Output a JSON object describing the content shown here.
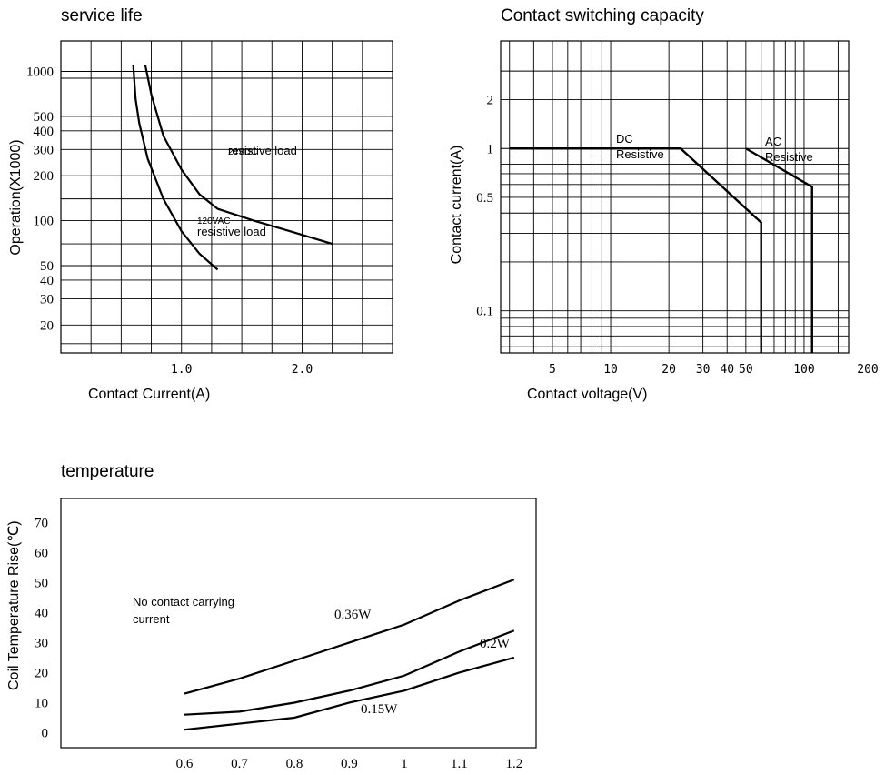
{
  "chart_data": [
    {
      "type": "line",
      "title": "service life",
      "xlabel": "Contact Current(A)",
      "ylabel": "Operation(X1000)",
      "x_ticks": [
        "1.0",
        "2.0"
      ],
      "y_ticks": [
        "1000",
        "500",
        "400",
        "300",
        "200",
        "100",
        "50",
        "40",
        "30",
        "20"
      ],
      "y_scale": "log",
      "series": [
        {
          "label": "24VDC\nresistive load",
          "x": [
            0.7,
            0.75,
            0.85,
            1.0,
            1.15,
            1.3,
            1.6,
            1.9,
            2.25
          ],
          "y": [
            1100,
            700,
            370,
            220,
            150,
            120,
            100,
            85,
            70
          ]
        },
        {
          "label": "120VAC\nresistive load",
          "x": [
            0.6,
            0.62,
            0.65,
            0.72,
            0.85,
            1.0,
            1.15,
            1.3
          ],
          "y": [
            1100,
            650,
            450,
            260,
            140,
            85,
            60,
            47
          ]
        }
      ]
    },
    {
      "type": "line",
      "title": "Contact switching capacity",
      "xlabel": "Contact voltage(V)",
      "ylabel": "Contact current(A)",
      "x_ticks": [
        "5",
        "10",
        "20",
        "30",
        "40",
        "50",
        "100",
        "200"
      ],
      "y_ticks": [
        "2",
        "1",
        "0.5",
        "0.1"
      ],
      "x_scale": "log",
      "series": [
        {
          "label": "DC\nResistive",
          "x": [
            3,
            23,
            60,
            60
          ],
          "y": [
            1,
            1,
            0.35,
            0.05
          ]
        },
        {
          "label": "AC\nResistive",
          "x": [
            50,
            110,
            110
          ],
          "y": [
            1,
            0.58,
            0.05
          ]
        }
      ]
    },
    {
      "type": "line",
      "title": "temperature",
      "xlabel": "",
      "ylabel": "Coil Temperature Rise(℃)",
      "x_ticks": [
        "0.6",
        "0.7",
        "0.8",
        "0.9",
        "1",
        "1.1",
        "1.2"
      ],
      "y_ticks": [
        "70",
        "60",
        "50",
        "40",
        "30",
        "20",
        "10",
        "0"
      ],
      "annotation": "No contact carrying\ncurrent",
      "series": [
        {
          "label": "0.36W",
          "x": [
            0.6,
            0.7,
            0.8,
            0.9,
            1.0,
            1.1,
            1.2
          ],
          "y": [
            13,
            18,
            24,
            30,
            36,
            44,
            51
          ]
        },
        {
          "label": "0.2W",
          "x": [
            0.6,
            0.7,
            0.8,
            0.9,
            1.0,
            1.1,
            1.2
          ],
          "y": [
            6,
            7,
            10,
            14,
            19,
            27,
            34
          ]
        },
        {
          "label": "0.15W",
          "x": [
            0.6,
            0.7,
            0.8,
            0.9,
            1.0,
            1.1,
            1.2
          ],
          "y": [
            1,
            3,
            5,
            10,
            14,
            20,
            25
          ]
        }
      ]
    }
  ]
}
